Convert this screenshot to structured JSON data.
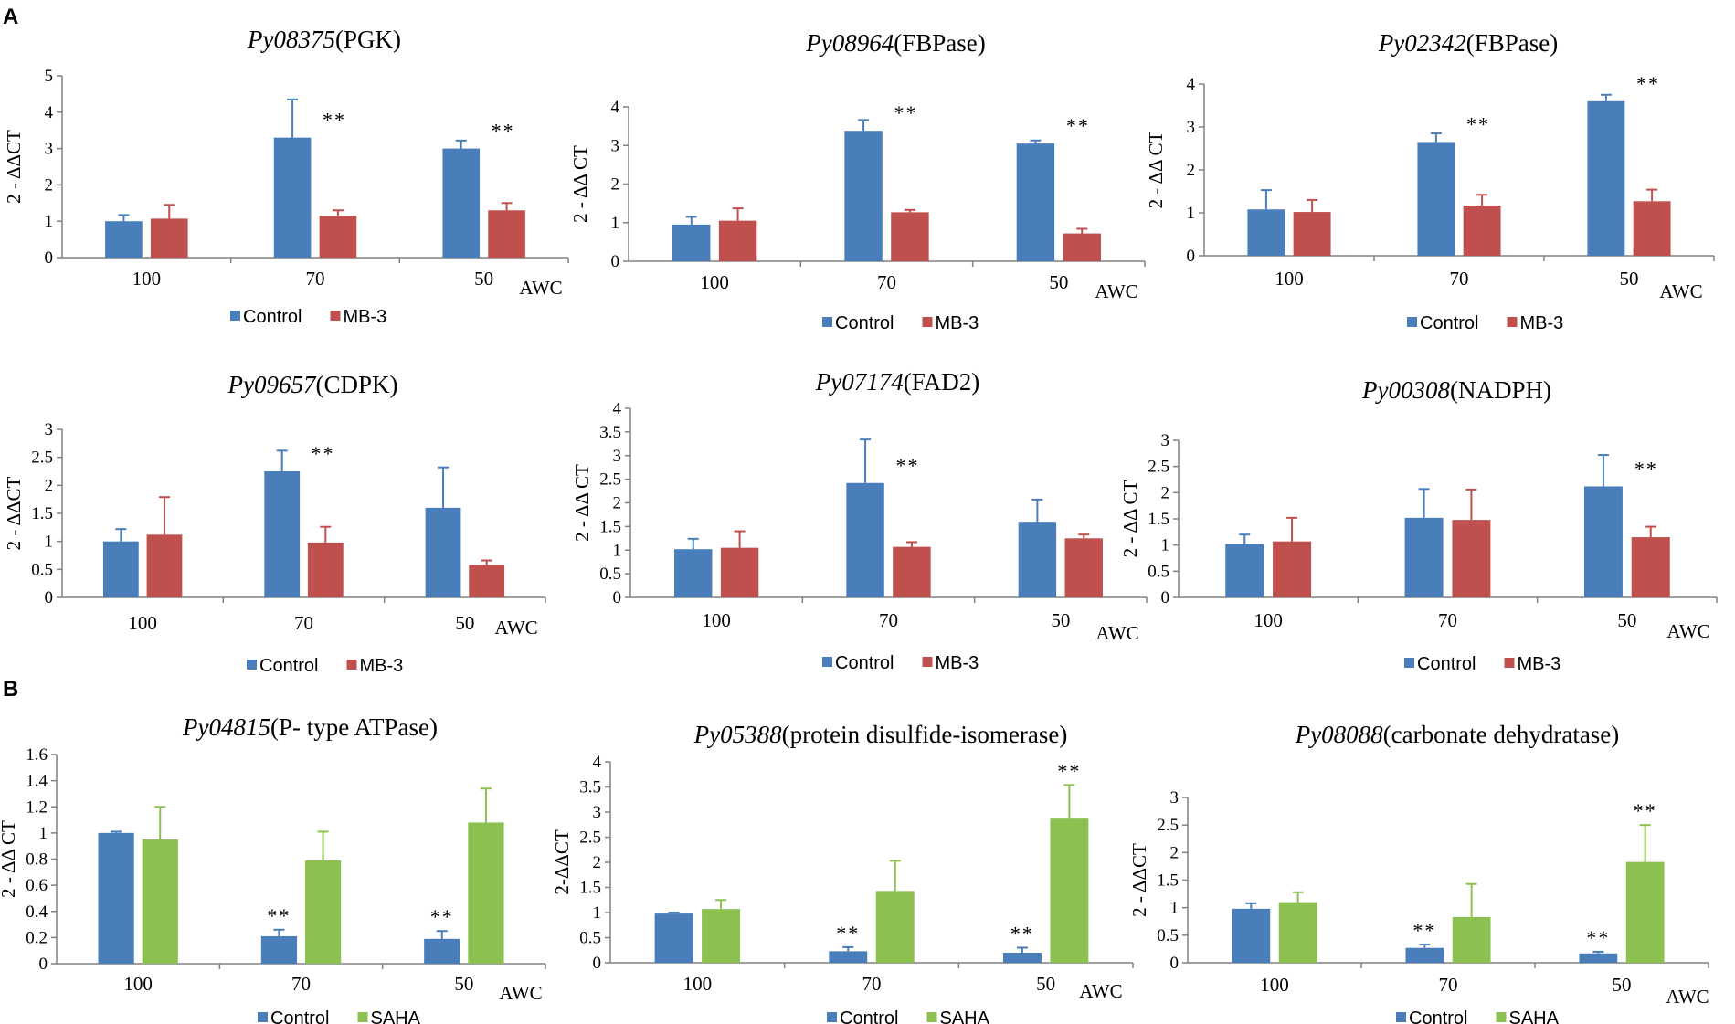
{
  "panel_labels": {
    "a": "A",
    "b": "B"
  },
  "colors": {
    "control": "#4a7ebb",
    "mb3": "#c0504d",
    "saha": "#8cc152",
    "axis": "#808080",
    "text": "#000000"
  },
  "chart_data": [
    {
      "type": "bar",
      "title_gene": "Py08375",
      "title_desc": "(PGK)",
      "ylabel": "2 - ΔΔCT",
      "xlabel": "AWC",
      "categories": [
        "100",
        "70",
        "50"
      ],
      "ylim": [
        0,
        5
      ],
      "yticks": [
        "0",
        "1",
        "2",
        "3",
        "4",
        "5"
      ],
      "series": [
        {
          "name": "Control",
          "color_key": "control",
          "values": [
            1.0,
            3.3,
            3.0
          ],
          "errors": [
            0.17,
            1.05,
            0.22
          ],
          "sig": [
            "",
            "",
            ""
          ]
        },
        {
          "name": "MB-3",
          "color_key": "mb3",
          "values": [
            1.07,
            1.15,
            1.3
          ],
          "errors": [
            0.38,
            0.15,
            0.2
          ],
          "sig": [
            "",
            "",
            ""
          ]
        }
      ],
      "sig_marks": [
        {
          "cat": 1,
          "text": "**"
        },
        {
          "cat": 2,
          "text": "**"
        }
      ]
    },
    {
      "type": "bar",
      "title_gene": "Py08964",
      "title_desc": "(FBPase)",
      "ylabel": "2 - ΔΔ CT",
      "xlabel": "AWC",
      "categories": [
        "100",
        "70",
        "50"
      ],
      "ylim": [
        0,
        4
      ],
      "yticks": [
        "0",
        "1",
        "2",
        "3",
        "4"
      ],
      "series": [
        {
          "name": "Control",
          "color_key": "control",
          "values": [
            0.95,
            3.38,
            3.05
          ],
          "errors": [
            0.2,
            0.28,
            0.08
          ],
          "sig": [
            "",
            "",
            ""
          ]
        },
        {
          "name": "MB-3",
          "color_key": "mb3",
          "values": [
            1.05,
            1.27,
            0.72
          ],
          "errors": [
            0.32,
            0.06,
            0.12
          ],
          "sig": [
            "",
            "",
            ""
          ]
        }
      ],
      "sig_marks": [
        {
          "cat": 1,
          "text": "**"
        },
        {
          "cat": 2,
          "text": "**"
        }
      ]
    },
    {
      "type": "bar",
      "title_gene": "Py02342",
      "title_desc": "(FBPase)",
      "ylabel": "2 - ΔΔ CT",
      "xlabel": "AWC",
      "categories": [
        "100",
        "70",
        "50"
      ],
      "ylim": [
        0,
        4
      ],
      "yticks": [
        "0",
        "1",
        "2",
        "3",
        "4"
      ],
      "series": [
        {
          "name": "Control",
          "color_key": "control",
          "values": [
            1.08,
            2.65,
            3.6
          ],
          "errors": [
            0.45,
            0.2,
            0.15
          ],
          "sig": [
            "",
            "",
            ""
          ]
        },
        {
          "name": "MB-3",
          "color_key": "mb3",
          "values": [
            1.02,
            1.17,
            1.27
          ],
          "errors": [
            0.28,
            0.25,
            0.27
          ],
          "sig": [
            "",
            "",
            ""
          ]
        }
      ],
      "sig_marks": [
        {
          "cat": 1,
          "text": "**"
        },
        {
          "cat": 2,
          "text": "**"
        }
      ]
    },
    {
      "type": "bar",
      "title_gene": "Py09657",
      "title_desc": "(CDPK)",
      "ylabel": "2 - ΔΔCT",
      "xlabel": "AWC",
      "categories": [
        "100",
        "70",
        "50"
      ],
      "ylim": [
        0,
        3
      ],
      "yticks": [
        "0",
        "0.5",
        "1",
        "1.5",
        "2",
        "2.5",
        "3"
      ],
      "series": [
        {
          "name": "Control",
          "color_key": "control",
          "values": [
            1.0,
            2.25,
            1.6
          ],
          "errors": [
            0.22,
            0.37,
            0.72
          ],
          "sig": [
            "",
            "",
            ""
          ]
        },
        {
          "name": "MB-3",
          "color_key": "mb3",
          "values": [
            1.12,
            0.98,
            0.58
          ],
          "errors": [
            0.67,
            0.28,
            0.08
          ],
          "sig": [
            "",
            "",
            ""
          ]
        }
      ],
      "sig_marks": [
        {
          "cat": 1,
          "text": "**"
        }
      ]
    },
    {
      "type": "bar",
      "title_gene": "Py07174",
      "title_desc": "(FAD2)",
      "ylabel": "2 - ΔΔ CT",
      "xlabel": "AWC",
      "categories": [
        "100",
        "70",
        "50"
      ],
      "ylim": [
        0,
        4
      ],
      "yticks": [
        "0",
        "0.5",
        "1",
        "1.5",
        "2",
        "2.5",
        "3",
        "3.5",
        "4"
      ],
      "series": [
        {
          "name": "Control",
          "color_key": "control",
          "values": [
            1.02,
            2.42,
            1.6
          ],
          "errors": [
            0.22,
            0.92,
            0.47
          ],
          "sig": [
            "",
            "",
            ""
          ]
        },
        {
          "name": "MB-3",
          "color_key": "mb3",
          "values": [
            1.05,
            1.07,
            1.25
          ],
          "errors": [
            0.35,
            0.1,
            0.08
          ],
          "sig": [
            "",
            "",
            ""
          ]
        }
      ],
      "sig_marks": [
        {
          "cat": 1,
          "text": "**"
        }
      ]
    },
    {
      "type": "bar",
      "title_gene": "Py00308",
      "title_desc": "(NADPH)",
      "ylabel": "2 - ΔΔ CT",
      "xlabel": "AWC",
      "categories": [
        "100",
        "70",
        "50"
      ],
      "ylim": [
        0,
        3
      ],
      "yticks": [
        "0",
        "0.5",
        "1",
        "1.5",
        "2",
        "2.5",
        "3"
      ],
      "series": [
        {
          "name": "Control",
          "color_key": "control",
          "values": [
            1.02,
            1.52,
            2.12
          ],
          "errors": [
            0.18,
            0.55,
            0.6
          ],
          "sig": [
            "",
            "",
            ""
          ]
        },
        {
          "name": "MB-3",
          "color_key": "mb3",
          "values": [
            1.07,
            1.48,
            1.15
          ],
          "errors": [
            0.45,
            0.58,
            0.2
          ],
          "sig": [
            "",
            "",
            ""
          ]
        }
      ],
      "sig_marks": [
        {
          "cat": 2,
          "text": "**"
        }
      ]
    },
    {
      "type": "bar",
      "title_gene": "Py04815",
      "title_desc": "(P- type ATPase)",
      "ylabel": "2 - ΔΔ CT",
      "xlabel": "AWC",
      "categories": [
        "100",
        "70",
        "50"
      ],
      "ylim": [
        0,
        1.6
      ],
      "yticks": [
        "0",
        "0.2",
        "0.4",
        "0.6",
        "0.8",
        "1",
        "1.2",
        "1.4",
        "1.6"
      ],
      "series": [
        {
          "name": "Control",
          "color_key": "control",
          "values": [
            1.0,
            0.21,
            0.19
          ],
          "errors": [
            0.01,
            0.05,
            0.06
          ],
          "sig": [
            "",
            "**",
            "**"
          ]
        },
        {
          "name": "SAHA",
          "color_key": "saha",
          "values": [
            0.95,
            0.79,
            1.08
          ],
          "errors": [
            0.25,
            0.22,
            0.26
          ],
          "sig": [
            "",
            "",
            ""
          ]
        }
      ],
      "sig_marks": []
    },
    {
      "type": "bar",
      "title_gene": "Py05388",
      "title_desc": "(protein disulfide-isomerase)",
      "ylabel": "2-ΔΔCT",
      "xlabel": "AWC",
      "categories": [
        "100",
        "70",
        "50"
      ],
      "ylim": [
        0,
        4
      ],
      "yticks": [
        "0",
        "0.5",
        "1",
        "1.5",
        "2",
        "2.5",
        "3",
        "3.5",
        "4"
      ],
      "series": [
        {
          "name": "Control",
          "color_key": "control",
          "values": [
            0.98,
            0.23,
            0.2
          ],
          "errors": [
            0.02,
            0.08,
            0.1
          ],
          "sig": [
            "",
            "**",
            "**"
          ]
        },
        {
          "name": "SAHA",
          "color_key": "saha",
          "values": [
            1.07,
            1.43,
            2.87
          ],
          "errors": [
            0.18,
            0.6,
            0.67
          ],
          "sig": [
            "",
            "",
            "**"
          ]
        }
      ],
      "sig_marks": []
    },
    {
      "type": "bar",
      "title_gene": "Py08088",
      "title_desc": "(carbonate dehydratase)",
      "ylabel": "2 - ΔΔCT",
      "xlabel": "AWC",
      "categories": [
        "100",
        "70",
        "50"
      ],
      "ylim": [
        0,
        3
      ],
      "yticks": [
        "0",
        "0.5",
        "1",
        "1.5",
        "2",
        "2.5",
        "3"
      ],
      "series": [
        {
          "name": "Control",
          "color_key": "control",
          "values": [
            0.98,
            0.27,
            0.17
          ],
          "errors": [
            0.1,
            0.06,
            0.03
          ],
          "sig": [
            "",
            "**",
            "**"
          ]
        },
        {
          "name": "SAHA",
          "color_key": "saha",
          "values": [
            1.1,
            0.83,
            1.83
          ],
          "errors": [
            0.18,
            0.6,
            0.67
          ],
          "sig": [
            "",
            "",
            "**"
          ]
        }
      ],
      "sig_marks": []
    }
  ]
}
